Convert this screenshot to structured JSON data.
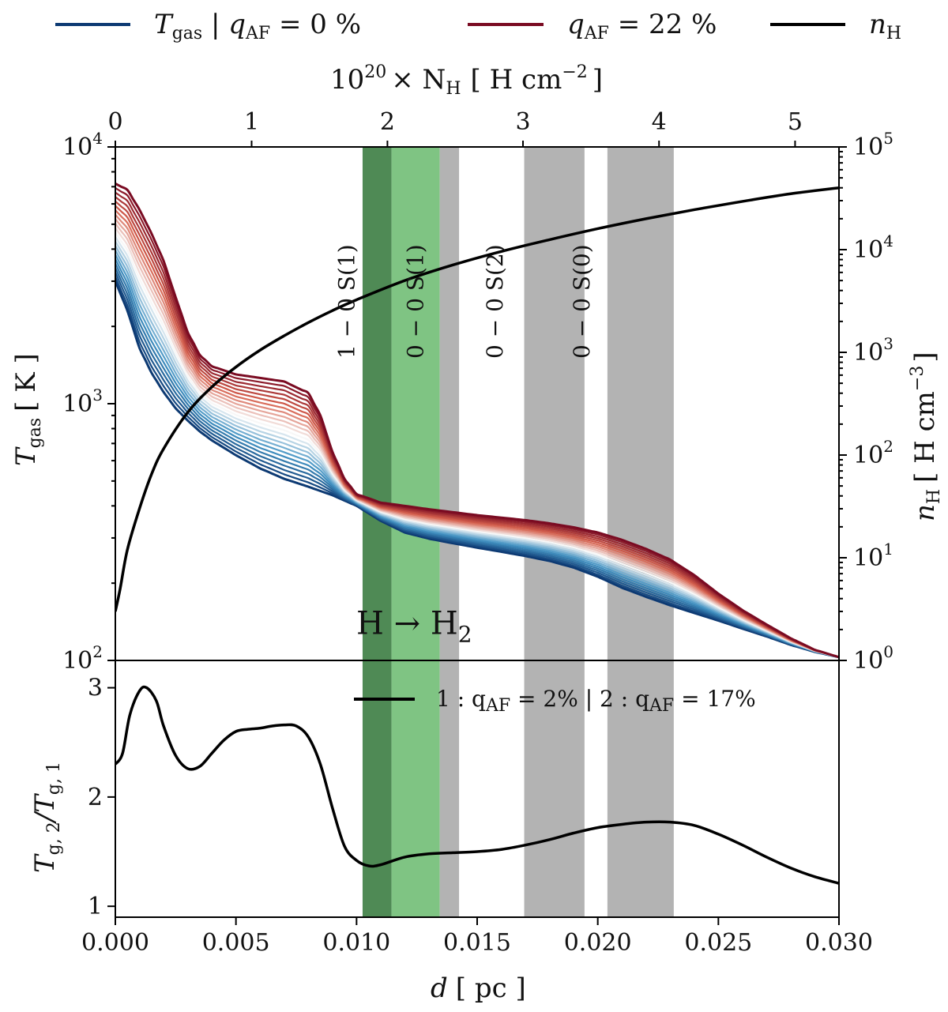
{
  "chart_data": [
    {
      "panel": "top",
      "type": "line",
      "title": "",
      "xlabel": "d [ pc ]",
      "xlim": [
        0.0,
        0.03
      ],
      "ylabel_left": "T_gas [ K ]",
      "yscale_left": "log",
      "ylim_left": [
        100,
        10000
      ],
      "left_ticks": [
        {
          "v": 100,
          "b": "10",
          "e": "2"
        },
        {
          "v": 1000,
          "b": "10",
          "e": "3"
        },
        {
          "v": 10000,
          "b": "10",
          "e": "4"
        }
      ],
      "ylabel_right": "n_H [ H cm^-3 ]",
      "yscale_right": "log",
      "ylim_right": [
        1,
        100000
      ],
      "right_ticks": [
        {
          "v": 1,
          "b": "10",
          "e": "0"
        },
        {
          "v": 10,
          "b": "10",
          "e": "1"
        },
        {
          "v": 100,
          "b": "10",
          "e": "2"
        },
        {
          "v": 1000,
          "b": "10",
          "e": "3"
        },
        {
          "v": 10000,
          "b": "10",
          "e": "4"
        },
        {
          "v": 100000,
          "b": "10",
          "e": "5"
        }
      ],
      "top_axis": {
        "label_prefix": "10",
        "label_exp": "20",
        "label_main": "× N",
        "label_sub": "H",
        "label_unit": "[ H cm",
        "label_unit_exp": "−2",
        "label_close": "]",
        "ticks": [
          {
            "label": "0",
            "d": 0.0
          },
          {
            "label": "1",
            "d": 0.00565
          },
          {
            "label": "2",
            "d": 0.01128
          },
          {
            "label": "3",
            "d": 0.0169
          },
          {
            "label": "4",
            "d": 0.02254
          },
          {
            "label": "5",
            "d": 0.02818
          }
        ]
      },
      "legend": {
        "placement": "top",
        "items": [
          {
            "label": "T_gas | q_AF = 0 %",
            "main": "T",
            "sub": "gas",
            "rest": " | q",
            "rest_sub": "AF",
            "tail": " = 0 %",
            "color": "#0d3a73"
          },
          {
            "label": "q_AF = 22 %",
            "main": "q",
            "sub": "AF",
            "tail": " = 22 %",
            "color": "#7a0b22"
          },
          {
            "label": "n_H",
            "main": "n",
            "sub": "H",
            "color": "#000000"
          }
        ]
      },
      "bands": [
        {
          "name": "1 − 0 S(1)",
          "x0": 0.01025,
          "x1": 0.01145,
          "color": "#4f8a55"
        },
        {
          "name": "0 − 0 S(1)",
          "x0": 0.01145,
          "x1": 0.01345,
          "color": "#7fc483"
        },
        {
          "name": "grey",
          "x0": 0.01345,
          "x1": 0.01425,
          "color": "#b3b3b3"
        },
        {
          "name": "0 − 0 S(2)",
          "x0": 0.01695,
          "x1": 0.01945,
          "color": "#b3b3b3"
        },
        {
          "name": "0 − 0 S(0)",
          "x0": 0.0204,
          "x1": 0.02315,
          "color": "#b3b3b3"
        }
      ],
      "band_labels": [
        {
          "text": "1 − 0  S(1)",
          "x": 0.0099,
          "y": 2500
        },
        {
          "text": "0 − 0  S(1)",
          "x": 0.01275,
          "y": 2500
        },
        {
          "text": "0 − 0  S(2)",
          "x": 0.01605,
          "y": 2500
        },
        {
          "text": "0 − 0  S(0)",
          "x": 0.01965,
          "y": 2500
        }
      ],
      "transition_label": {
        "main": "H → H",
        "sub": "2",
        "x": 0.0113,
        "y": 140,
        "color": "#2ca02c"
      },
      "series": [
        {
          "name": "T_gas, q_AF = 0 %",
          "color": "#0d3a73",
          "x": [
            0.0,
            0.0005,
            0.001,
            0.0015,
            0.002,
            0.0025,
            0.003,
            0.0035,
            0.004,
            0.005,
            0.006,
            0.007,
            0.008,
            0.009,
            0.01,
            0.011,
            0.012,
            0.013,
            0.014,
            0.015,
            0.016,
            0.017,
            0.018,
            0.019,
            0.02,
            0.021,
            0.022,
            0.023,
            0.024,
            0.025,
            0.026,
            0.027,
            0.028,
            0.029,
            0.03
          ],
          "y": [
            3000,
            2300,
            1650,
            1320,
            1110,
            960,
            860,
            780,
            720,
            630,
            560,
            510,
            475,
            440,
            400,
            350,
            315,
            298,
            286,
            275,
            265,
            255,
            244,
            230,
            212,
            192,
            177,
            164,
            153,
            143,
            133,
            124,
            115,
            108,
            103
          ]
        },
        {
          "name": "T_gas, q_AF = 22 %",
          "color": "#7a0b22",
          "x": [
            0.0,
            0.0005,
            0.001,
            0.0015,
            0.002,
            0.0025,
            0.003,
            0.0035,
            0.004,
            0.005,
            0.006,
            0.007,
            0.008,
            0.0085,
            0.009,
            0.0095,
            0.01,
            0.011,
            0.012,
            0.013,
            0.014,
            0.015,
            0.016,
            0.017,
            0.018,
            0.019,
            0.02,
            0.021,
            0.022,
            0.023,
            0.024,
            0.025,
            0.026,
            0.027,
            0.028,
            0.029,
            0.03
          ],
          "y": [
            7200,
            6800,
            5700,
            4600,
            3600,
            2600,
            1900,
            1550,
            1400,
            1300,
            1260,
            1220,
            1100,
            900,
            650,
            510,
            445,
            412,
            400,
            388,
            378,
            368,
            360,
            352,
            342,
            330,
            315,
            295,
            272,
            247,
            215,
            182,
            157,
            138,
            122,
            110,
            103
          ]
        },
        {
          "name": "n_H",
          "axis": "right",
          "color": "#000000",
          "x": [
            0.0,
            0.0002,
            0.0005,
            0.001,
            0.0015,
            0.002,
            0.003,
            0.004,
            0.005,
            0.006,
            0.007,
            0.008,
            0.009,
            0.01,
            0.012,
            0.014,
            0.016,
            0.018,
            0.02,
            0.022,
            0.024,
            0.026,
            0.028,
            0.03
          ],
          "y": [
            3,
            5,
            12,
            30,
            65,
            115,
            260,
            460,
            720,
            1050,
            1450,
            1950,
            2550,
            3250,
            5000,
            7100,
            9600,
            12500,
            16000,
            20000,
            24500,
            29500,
            35000,
            40000
          ]
        }
      ]
    },
    {
      "panel": "bottom",
      "type": "line",
      "title": "",
      "xlabel": "d [ pc ]",
      "xlim": [
        0.0,
        0.03
      ],
      "xticks": [
        "0.000",
        "0.005",
        "0.010",
        "0.015",
        "0.020",
        "0.025",
        "0.030"
      ],
      "ylabel": "T_g,2 / T_g,1",
      "ylim": [
        0.9,
        3.25
      ],
      "yticks": [
        "1",
        "2",
        "3"
      ],
      "legend": {
        "placement": "top-right",
        "label": "1 : q_AF = 2 % | 2 : q_AF = 17 %"
      },
      "series": [
        {
          "name": "1 : q_AF = 2 % | 2 : q_AF = 17 %",
          "color": "#000000",
          "x": [
            0.0,
            0.0003,
            0.0006,
            0.001,
            0.0013,
            0.0017,
            0.002,
            0.0025,
            0.003,
            0.0035,
            0.004,
            0.0045,
            0.005,
            0.0055,
            0.006,
            0.0065,
            0.007,
            0.0075,
            0.008,
            0.0085,
            0.009,
            0.0095,
            0.01,
            0.0105,
            0.011,
            0.012,
            0.013,
            0.014,
            0.015,
            0.016,
            0.017,
            0.018,
            0.019,
            0.02,
            0.021,
            0.022,
            0.023,
            0.024,
            0.025,
            0.026,
            0.027,
            0.028,
            0.029,
            0.03
          ],
          "y": [
            2.3,
            2.4,
            2.75,
            2.97,
            3.0,
            2.88,
            2.65,
            2.38,
            2.26,
            2.28,
            2.4,
            2.52,
            2.6,
            2.62,
            2.63,
            2.65,
            2.66,
            2.65,
            2.55,
            2.3,
            1.9,
            1.55,
            1.42,
            1.37,
            1.38,
            1.45,
            1.48,
            1.49,
            1.5,
            1.52,
            1.56,
            1.61,
            1.67,
            1.72,
            1.75,
            1.77,
            1.77,
            1.74,
            1.66,
            1.56,
            1.45,
            1.35,
            1.27,
            1.21
          ]
        }
      ]
    }
  ],
  "labels": {
    "top_panel_y_left": {
      "main": "T",
      "sub": "gas",
      "unit": "[ K ]"
    },
    "top_panel_y_right": {
      "main": "n",
      "sub": "H",
      "unit": "[ H cm",
      "unit_exp": "−3",
      "close": "]"
    },
    "bottom_panel_y": {
      "t1": "T",
      "s1": "g, 2",
      "mid": "/T",
      "s2": "g, 1"
    },
    "x_axis": {
      "main": "d",
      "unit": "[ pc ]"
    },
    "legend_bottom": {
      "one": "1 : q",
      "sub1": "AF",
      "eq1": " = 2%  |  2 : q",
      "sub2": "AF",
      "eq2": " = 17%"
    }
  }
}
